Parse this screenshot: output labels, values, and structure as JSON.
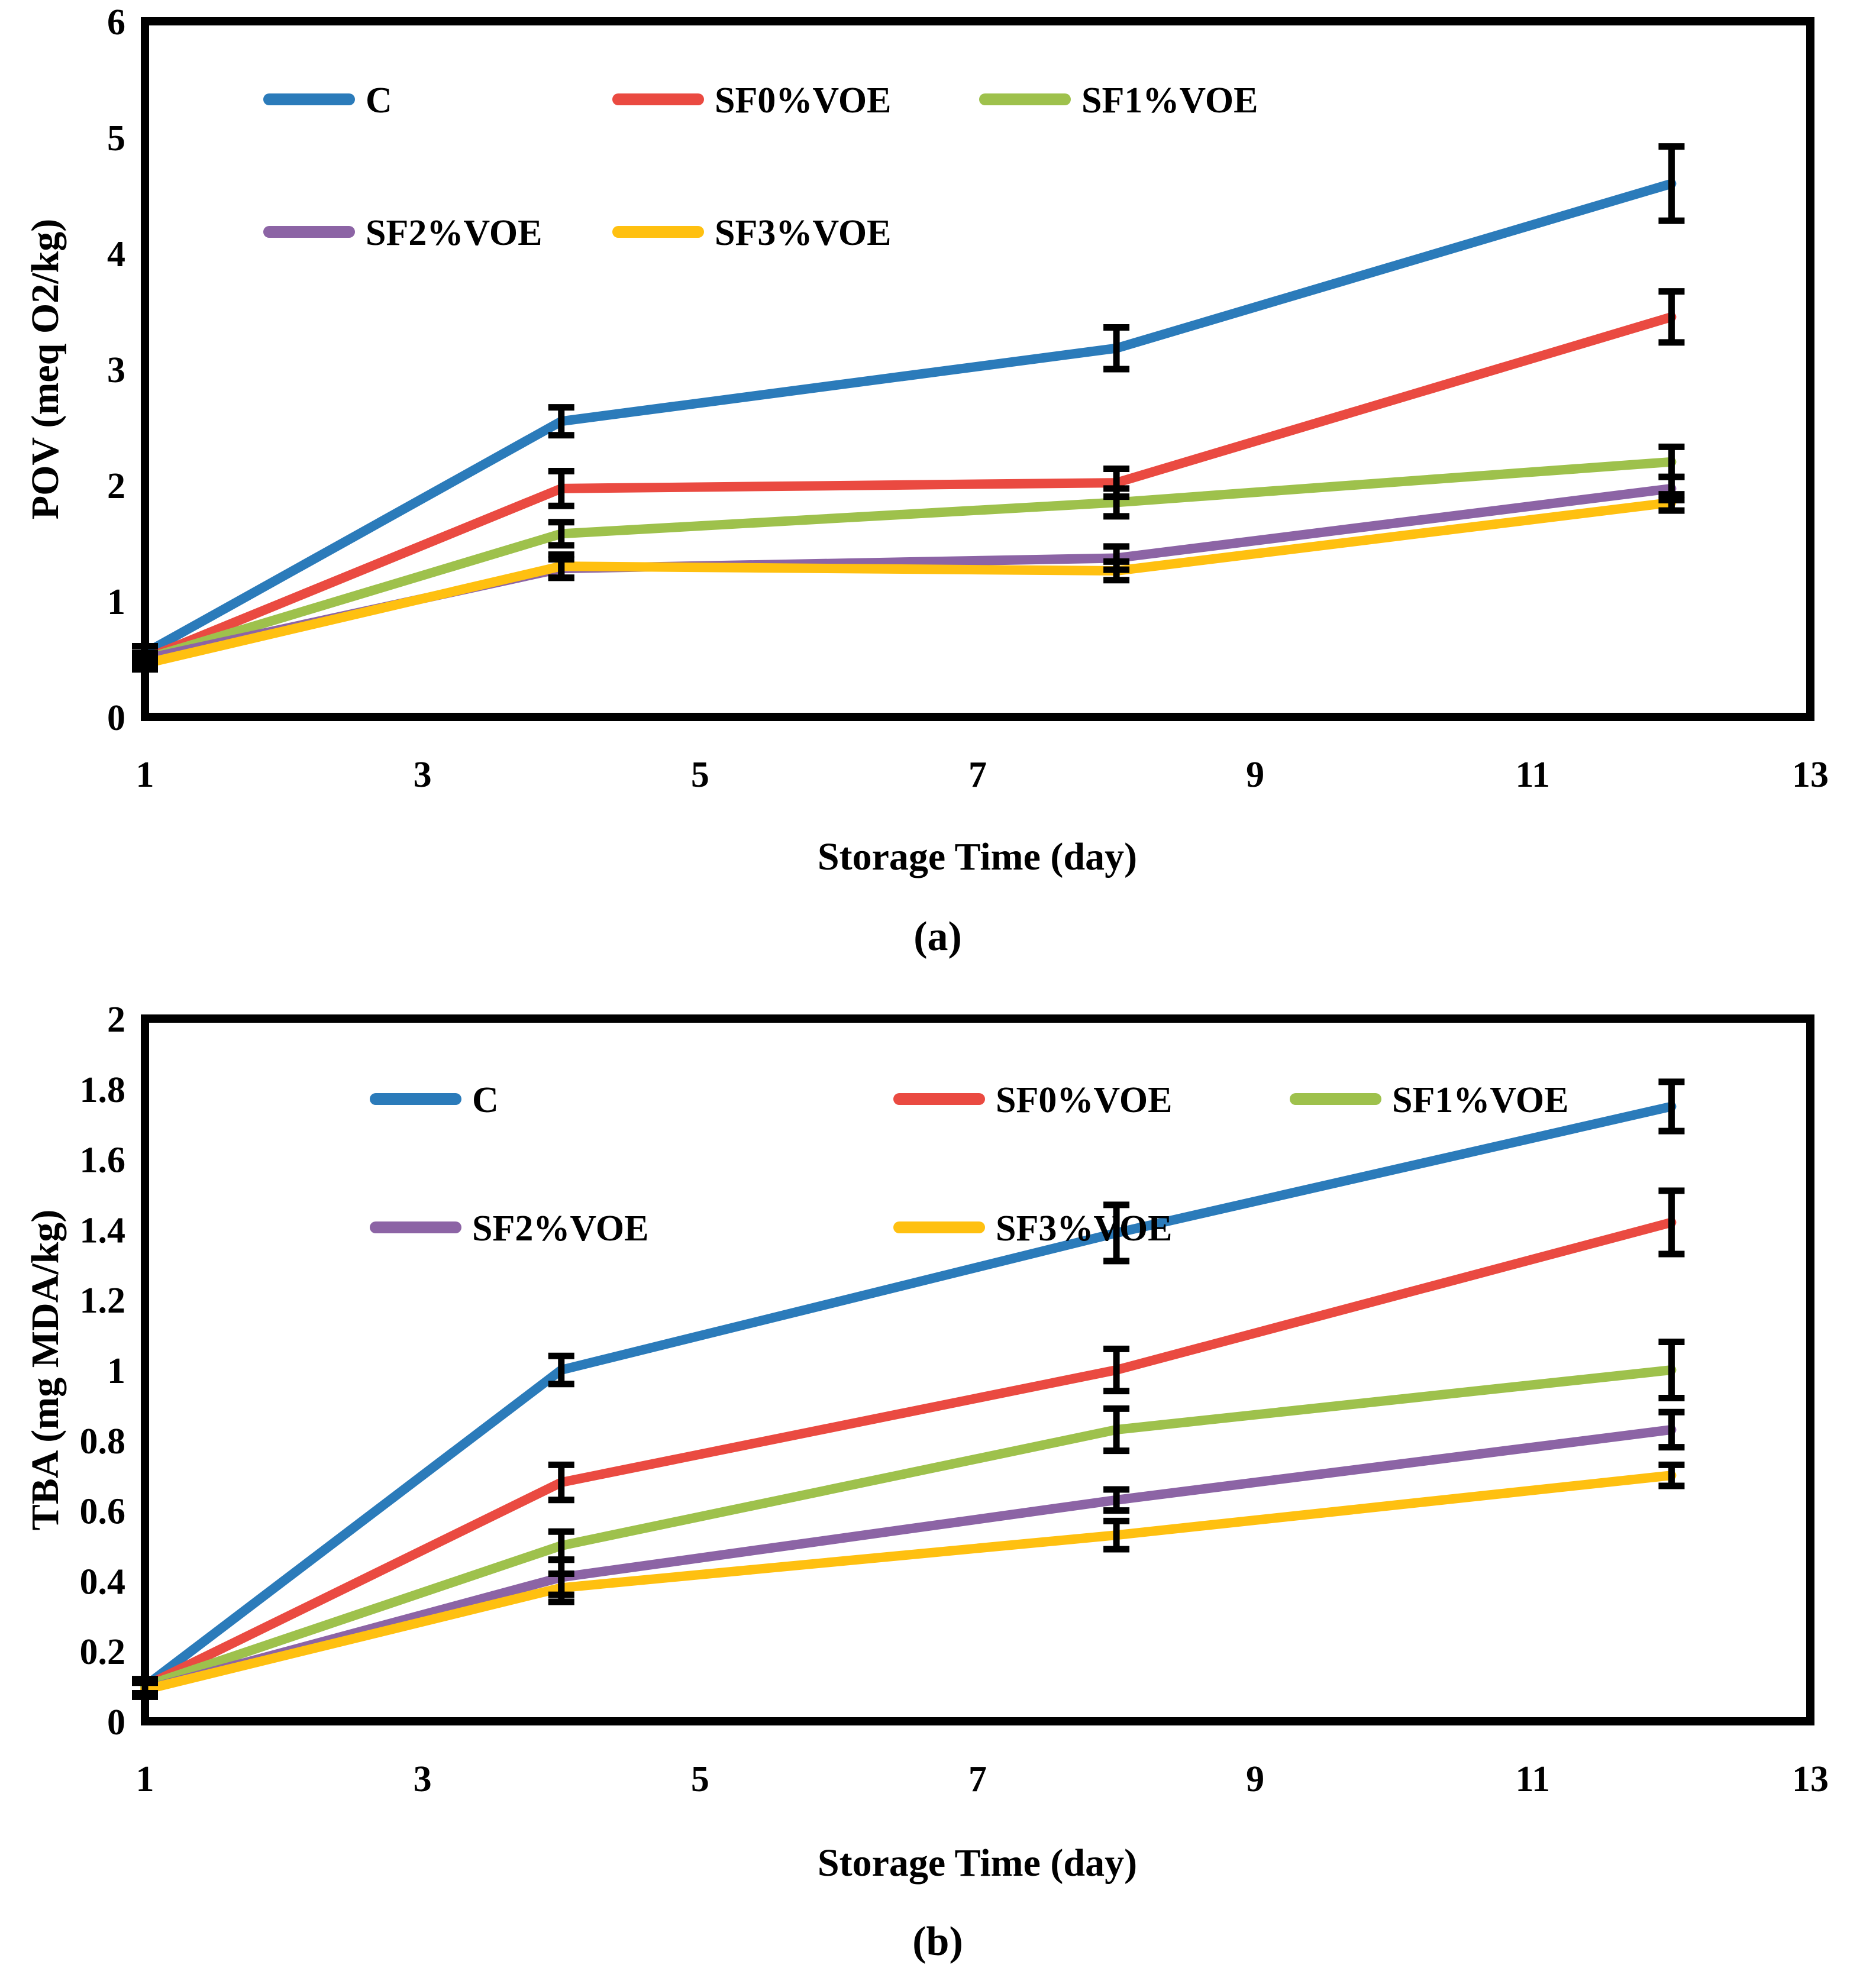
{
  "figure_title": "",
  "chart_data": [
    {
      "id": "a",
      "type": "line",
      "caption": "(a)",
      "xlabel": "Storage Time (day)",
      "ylabel": "POV (meq O2/kg)",
      "xlim": [
        1,
        13
      ],
      "ylim": [
        0,
        6
      ],
      "x_tick_values": [
        1,
        3,
        5,
        7,
        9,
        11,
        13
      ],
      "x_tick_labels": [
        "1",
        "3",
        "5",
        "7",
        "9",
        "11",
        "13"
      ],
      "y_tick_values": [
        0,
        1,
        2,
        3,
        4,
        5,
        6
      ],
      "y_tick_labels": [
        "0",
        "1",
        "2",
        "3",
        "4",
        "5",
        "6"
      ],
      "x": [
        1,
        4,
        8,
        12
      ],
      "grid": false,
      "legend_position": "inside-top-left",
      "series": [
        {
          "name": "C",
          "color": "#2B7BBA",
          "values": [
            0.55,
            2.55,
            3.18,
            4.6
          ],
          "errors": [
            0.06,
            0.12,
            0.18,
            0.32
          ]
        },
        {
          "name": "SF0%VOE",
          "color": "#EA4A41",
          "values": [
            0.5,
            1.97,
            2.02,
            3.45
          ],
          "errors": [
            0.05,
            0.15,
            0.12,
            0.22
          ]
        },
        {
          "name": "SF1%VOE",
          "color": "#9EC14C",
          "values": [
            0.5,
            1.58,
            1.85,
            2.2
          ],
          "errors": [
            0.05,
            0.1,
            0.12,
            0.13
          ]
        },
        {
          "name": "SF2%VOE",
          "color": "#8C64A5",
          "values": [
            0.5,
            1.28,
            1.37,
            1.97
          ],
          "errors": [
            0.04,
            0.08,
            0.1,
            0.1
          ]
        },
        {
          "name": "SF3%VOE",
          "color": "#FFC010",
          "values": [
            0.46,
            1.3,
            1.26,
            1.85
          ],
          "errors": [
            0.05,
            0.1,
            0.08,
            0.07
          ]
        }
      ]
    },
    {
      "id": "b",
      "type": "line",
      "caption": "(b)",
      "xlabel": "Storage Time (day)",
      "ylabel": "TBA (mg MDA/kg)",
      "xlim": [
        1,
        13
      ],
      "ylim": [
        0,
        2
      ],
      "x_tick_values": [
        1,
        3,
        5,
        7,
        9,
        11,
        13
      ],
      "x_tick_labels": [
        "1",
        "3",
        "5",
        "7",
        "9",
        "11",
        "13"
      ],
      "y_tick_values": [
        0,
        0.2,
        0.4,
        0.6,
        0.8,
        1,
        1.2,
        1.4,
        1.6,
        1.8,
        2
      ],
      "y_tick_labels": [
        "0",
        "0.2",
        "0.4",
        "0.6",
        "0.8",
        "1",
        "1.2",
        "1.4",
        "1.6",
        "1.8",
        "2"
      ],
      "x": [
        1,
        4,
        8,
        12
      ],
      "grid": false,
      "legend_position": "inside-top-left",
      "series": [
        {
          "name": "C",
          "color": "#2B7BBA",
          "values": [
            0.1,
            1.0,
            1.39,
            1.75
          ],
          "errors": [
            0.02,
            0.04,
            0.08,
            0.07
          ]
        },
        {
          "name": "SF0%VOE",
          "color": "#EA4A41",
          "values": [
            0.1,
            0.68,
            1.0,
            1.42
          ],
          "errors": [
            0.02,
            0.05,
            0.06,
            0.09
          ]
        },
        {
          "name": "SF1%VOE",
          "color": "#9EC14C",
          "values": [
            0.1,
            0.5,
            0.83,
            1.0
          ],
          "errors": [
            0.02,
            0.04,
            0.06,
            0.08
          ]
        },
        {
          "name": "SF2%VOE",
          "color": "#8C64A5",
          "values": [
            0.09,
            0.41,
            0.63,
            0.83
          ],
          "errors": [
            0.02,
            0.05,
            0.03,
            0.05
          ]
        },
        {
          "name": "SF3%VOE",
          "color": "#FFC010",
          "values": [
            0.09,
            0.38,
            0.53,
            0.7
          ],
          "errors": [
            0.02,
            0.04,
            0.04,
            0.03
          ]
        }
      ]
    }
  ]
}
